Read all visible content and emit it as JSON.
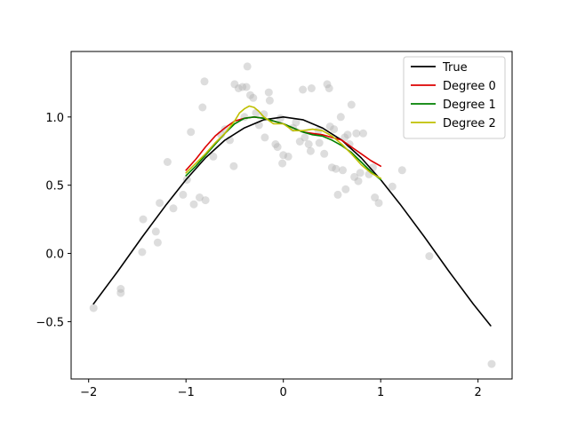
{
  "chart_data": {
    "type": "scatter",
    "title": "",
    "xlabel": "",
    "ylabel": "",
    "xlim": [
      -2.18,
      2.35
    ],
    "ylim": [
      -0.92,
      1.48
    ],
    "xticks": [
      -2,
      -1,
      0,
      1,
      2
    ],
    "yticks": [
      -0.5,
      0.0,
      0.5,
      1.0
    ],
    "xtick_labels": [
      "−2",
      "−1",
      "0",
      "1",
      "2"
    ],
    "ytick_labels": [
      "−0.5",
      "0.0",
      "0.5",
      "1.0"
    ],
    "grid": false,
    "legend_position": "top-right",
    "scatter": {
      "color": "#b3b3b3",
      "points": [
        [
          -1.95,
          -0.4
        ],
        [
          -1.67,
          -0.26
        ],
        [
          -1.67,
          -0.29
        ],
        [
          -1.45,
          0.01
        ],
        [
          -1.44,
          0.25
        ],
        [
          -1.31,
          0.16
        ],
        [
          -1.29,
          0.08
        ],
        [
          -1.27,
          0.37
        ],
        [
          -1.19,
          0.67
        ],
        [
          -1.13,
          0.33
        ],
        [
          -1.03,
          0.43
        ],
        [
          -0.99,
          0.54
        ],
        [
          -0.95,
          0.89
        ],
        [
          -0.92,
          0.36
        ],
        [
          -0.86,
          0.41
        ],
        [
          -0.83,
          1.07
        ],
        [
          -0.81,
          1.26
        ],
        [
          -0.8,
          0.39
        ],
        [
          -0.72,
          0.71
        ],
        [
          -0.64,
          0.87
        ],
        [
          -0.6,
          0.91
        ],
        [
          -0.55,
          0.83
        ],
        [
          -0.51,
          0.64
        ],
        [
          -0.5,
          1.24
        ],
        [
          -0.46,
          1.21
        ],
        [
          -0.42,
          1.22
        ],
        [
          -0.4,
          1.0
        ],
        [
          -0.38,
          1.22
        ],
        [
          -0.37,
          1.37
        ],
        [
          -0.34,
          1.16
        ],
        [
          -0.31,
          1.14
        ],
        [
          -0.28,
          1.03
        ],
        [
          -0.25,
          0.94
        ],
        [
          -0.2,
          1.02
        ],
        [
          -0.19,
          0.85
        ],
        [
          -0.14,
          1.12
        ],
        [
          -0.08,
          0.8
        ],
        [
          -0.06,
          0.78
        ],
        [
          -0.03,
          0.99
        ],
        [
          -0.01,
          0.66
        ],
        [
          0.0,
          0.72
        ],
        [
          0.05,
          0.71
        ],
        [
          0.1,
          0.92
        ],
        [
          0.13,
          0.96
        ],
        [
          0.17,
          0.82
        ],
        [
          0.22,
          0.85
        ],
        [
          0.26,
          0.8
        ],
        [
          0.28,
          0.75
        ],
        [
          0.29,
          1.21
        ],
        [
          0.36,
          0.9
        ],
        [
          0.37,
          0.81
        ],
        [
          0.42,
          0.73
        ],
        [
          0.45,
          1.24
        ],
        [
          0.47,
          1.21
        ],
        [
          0.48,
          0.93
        ],
        [
          0.5,
          0.63
        ],
        [
          0.52,
          0.91
        ],
        [
          0.54,
          0.62
        ],
        [
          0.56,
          0.43
        ],
        [
          0.59,
          1.0
        ],
        [
          0.61,
          0.61
        ],
        [
          0.63,
          0.85
        ],
        [
          0.64,
          0.47
        ],
        [
          0.66,
          0.87
        ],
        [
          0.68,
          0.8
        ],
        [
          0.7,
          1.09
        ],
        [
          0.73,
          0.56
        ],
        [
          0.75,
          0.88
        ],
        [
          0.77,
          0.53
        ],
        [
          0.79,
          0.59
        ],
        [
          0.82,
          0.88
        ],
        [
          0.88,
          0.58
        ],
        [
          0.92,
          0.63
        ],
        [
          0.94,
          0.41
        ],
        [
          0.98,
          0.37
        ],
        [
          1.12,
          0.49
        ],
        [
          1.22,
          0.61
        ],
        [
          1.5,
          -0.02
        ],
        [
          2.14,
          -0.81
        ],
        [
          -0.15,
          1.18
        ],
        [
          0.2,
          1.2
        ]
      ]
    },
    "series": [
      {
        "name": "True",
        "color": "#000000",
        "x": [
          -1.95,
          -1.7,
          -1.45,
          -1.2,
          -1.0,
          -0.8,
          -0.6,
          -0.4,
          -0.2,
          0.0,
          0.2,
          0.4,
          0.6,
          0.8,
          1.0,
          1.2,
          1.45,
          1.7,
          1.95,
          2.13
        ],
        "y": [
          -0.37,
          -0.13,
          0.12,
          0.36,
          0.54,
          0.7,
          0.83,
          0.92,
          0.98,
          1.0,
          0.98,
          0.92,
          0.83,
          0.7,
          0.54,
          0.36,
          0.12,
          -0.13,
          -0.37,
          -0.53
        ]
      },
      {
        "name": "Degree 0",
        "color": "#dd0000",
        "x": [
          -1.0,
          -0.9,
          -0.8,
          -0.7,
          -0.6,
          -0.5,
          -0.4,
          -0.3,
          -0.2,
          -0.1,
          0.0,
          0.1,
          0.2,
          0.3,
          0.4,
          0.5,
          0.6,
          0.7,
          0.8,
          0.9,
          1.0
        ],
        "y": [
          0.61,
          0.69,
          0.78,
          0.86,
          0.92,
          0.97,
          0.99,
          1.0,
          0.99,
          0.97,
          0.95,
          0.92,
          0.89,
          0.88,
          0.87,
          0.85,
          0.83,
          0.78,
          0.73,
          0.68,
          0.64
        ]
      },
      {
        "name": "Degree 1",
        "color": "#008000",
        "x": [
          -1.0,
          -0.9,
          -0.8,
          -0.7,
          -0.6,
          -0.5,
          -0.4,
          -0.3,
          -0.2,
          -0.1,
          0.0,
          0.1,
          0.2,
          0.3,
          0.4,
          0.5,
          0.6,
          0.7,
          0.8,
          0.9,
          1.0
        ],
        "y": [
          0.57,
          0.64,
          0.72,
          0.8,
          0.88,
          0.95,
          0.99,
          1.0,
          0.99,
          0.97,
          0.95,
          0.92,
          0.89,
          0.87,
          0.86,
          0.83,
          0.79,
          0.74,
          0.67,
          0.6,
          0.54
        ]
      },
      {
        "name": "Degree 2",
        "color": "#bfbf00",
        "x": [
          -1.0,
          -0.9,
          -0.8,
          -0.7,
          -0.6,
          -0.5,
          -0.45,
          -0.4,
          -0.35,
          -0.3,
          -0.25,
          -0.2,
          -0.1,
          0.0,
          0.1,
          0.2,
          0.3,
          0.4,
          0.5,
          0.6,
          0.7,
          0.8,
          0.9,
          1.0
        ],
        "y": [
          0.59,
          0.66,
          0.73,
          0.81,
          0.88,
          0.97,
          1.03,
          1.06,
          1.08,
          1.07,
          1.04,
          1.0,
          0.95,
          0.95,
          0.9,
          0.9,
          0.91,
          0.9,
          0.86,
          0.8,
          0.73,
          0.65,
          0.59,
          0.55
        ]
      }
    ]
  }
}
